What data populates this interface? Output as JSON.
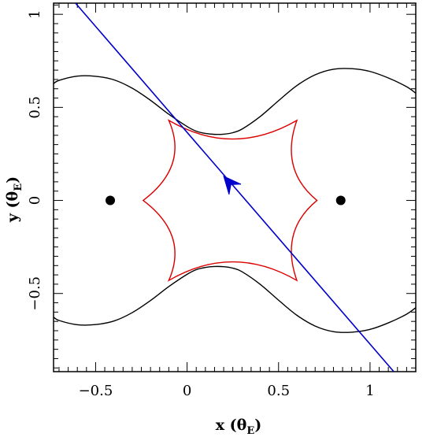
{
  "chart_data": {
    "type": "line",
    "title": "",
    "xlabel": "x (θ",
    "ylabel": "y (θ",
    "label_subscript": "E",
    "label_close": ")",
    "xlim": [
      -0.73,
      1.25
    ],
    "ylim": [
      -0.92,
      1.06
    ],
    "xticks": [
      {
        "v": -0.5,
        "label": "−0.5"
      },
      {
        "v": 0,
        "label": "0"
      },
      {
        "v": 0.5,
        "label": "0.5"
      },
      {
        "v": 1,
        "label": "1"
      }
    ],
    "yticks": [
      {
        "v": -0.5,
        "label": "−0.5"
      },
      {
        "v": 0,
        "label": "0"
      },
      {
        "v": 0.5,
        "label": "0.5"
      },
      {
        "v": 1,
        "label": "1"
      }
    ],
    "lenses": [
      {
        "x": -0.42,
        "y": 0
      },
      {
        "x": 0.84,
        "y": 0
      }
    ],
    "critical_curve": {
      "color": "#000000",
      "upper": {
        "x": [
          -0.73,
          -0.7,
          -0.6,
          -0.5,
          -0.4,
          -0.3,
          -0.2,
          -0.1,
          0.0,
          0.05,
          0.1,
          0.15,
          0.2,
          0.25,
          0.3,
          0.4,
          0.5,
          0.6,
          0.7,
          0.8,
          0.9,
          1.0,
          1.1,
          1.2,
          1.25
        ],
        "y": [
          0.627,
          0.645,
          0.668,
          0.667,
          0.648,
          0.603,
          0.538,
          0.463,
          0.397,
          0.372,
          0.36,
          0.355,
          0.356,
          0.364,
          0.383,
          0.451,
          0.536,
          0.617,
          0.675,
          0.705,
          0.708,
          0.693,
          0.658,
          0.611,
          0.576
        ]
      },
      "lower": {
        "x": [
          -0.73,
          -0.7,
          -0.6,
          -0.5,
          -0.4,
          -0.3,
          -0.2,
          -0.1,
          0.0,
          0.05,
          0.1,
          0.15,
          0.2,
          0.25,
          0.3,
          0.4,
          0.5,
          0.6,
          0.7,
          0.8,
          0.9,
          1.0,
          1.1,
          1.2,
          1.25
        ],
        "y": [
          -0.627,
          -0.645,
          -0.668,
          -0.667,
          -0.648,
          -0.603,
          -0.538,
          -0.463,
          -0.397,
          -0.372,
          -0.36,
          -0.355,
          -0.356,
          -0.364,
          -0.383,
          -0.451,
          -0.536,
          -0.617,
          -0.675,
          -0.705,
          -0.708,
          -0.693,
          -0.658,
          -0.611,
          -0.576
        ]
      }
    },
    "caustic": {
      "color": "#dd0000",
      "cusps": [
        {
          "x": -0.1,
          "y": 0.43
        },
        {
          "x": 0.6,
          "y": 0.43
        },
        {
          "x": 0.71,
          "y": 0
        },
        {
          "x": 0.6,
          "y": -0.43
        },
        {
          "x": -0.1,
          "y": -0.43
        },
        {
          "x": -0.24,
          "y": 0
        }
      ],
      "mid_points": [
        {
          "x": 0.25,
          "y": 0.33
        },
        {
          "x": 0.58,
          "y": 0.19
        },
        {
          "x": 0.58,
          "y": -0.19
        },
        {
          "x": 0.25,
          "y": -0.33
        },
        {
          "x": -0.08,
          "y": -0.2
        },
        {
          "x": -0.08,
          "y": 0.2
        }
      ]
    },
    "source_trajectory": {
      "color": "#0000cc",
      "x": [
        -0.61,
        1.13
      ],
      "y": [
        1.06,
        -0.92
      ],
      "arrow": {
        "x": 0.2,
        "y": 0.13
      }
    }
  }
}
